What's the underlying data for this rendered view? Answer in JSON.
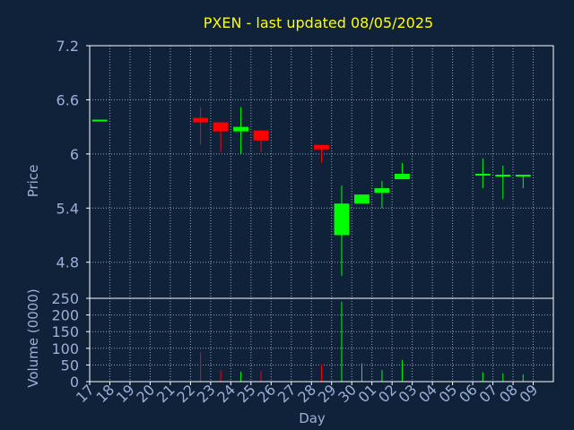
{
  "chart_data": {
    "type": "candlestick",
    "title": "PXEN - last updated 08/05/2025",
    "xlabel": "Day",
    "price_panel": {
      "ylabel": "Price",
      "ylim": [
        4.4,
        7.2
      ],
      "yticks": [
        7.2,
        6.6,
        6,
        5.4,
        4.8
      ],
      "ytick_labels": [
        "7.2",
        "6.6",
        "6",
        "5.4",
        "4.8"
      ],
      "grid": true
    },
    "volume_panel": {
      "ylabel": "Volume (0000)",
      "ylim": [
        0,
        250
      ],
      "yticks": [
        250,
        200,
        150,
        100,
        50,
        0
      ],
      "ytick_labels": [
        "250",
        "200",
        "150",
        "100",
        "50",
        "0"
      ],
      "grid": true
    },
    "x_tick_labels": [
      "17",
      "18",
      "19",
      "20",
      "21",
      "22",
      "23",
      "24",
      "25",
      "26",
      "27",
      "28",
      "29",
      "30",
      "01",
      "02",
      "03",
      "04",
      "05",
      "06",
      "07",
      "08",
      "09"
    ],
    "candles": [
      {
        "day": "17",
        "open": 6.38,
        "high": 6.38,
        "low": 6.38,
        "close": 6.38,
        "volume": 0
      },
      {
        "day": "22",
        "open": 6.4,
        "high": 6.52,
        "low": 6.1,
        "close": 6.35,
        "volume": 88
      },
      {
        "day": "23",
        "open": 6.35,
        "high": 6.35,
        "low": 6.02,
        "close": 6.25,
        "volume": 35
      },
      {
        "day": "24",
        "open": 6.25,
        "high": 6.52,
        "low": 6.0,
        "close": 6.3,
        "volume": 30
      },
      {
        "day": "25",
        "open": 6.26,
        "high": 6.26,
        "low": 6.02,
        "close": 6.15,
        "volume": 32
      },
      {
        "day": "28",
        "open": 6.1,
        "high": 6.1,
        "low": 5.9,
        "close": 6.05,
        "volume": 52
      },
      {
        "day": "29",
        "open": 5.1,
        "high": 5.65,
        "low": 4.65,
        "close": 5.45,
        "volume": 240
      },
      {
        "day": "30",
        "open": 5.45,
        "high": 5.55,
        "low": 5.45,
        "close": 5.55,
        "volume": 55
      },
      {
        "day": "01",
        "open": 5.57,
        "high": 5.7,
        "low": 5.4,
        "close": 5.62,
        "volume": 35
      },
      {
        "day": "02",
        "open": 5.72,
        "high": 5.9,
        "low": 5.72,
        "close": 5.78,
        "volume": 65
      },
      {
        "day": "06",
        "open": 5.78,
        "high": 5.95,
        "low": 5.62,
        "close": 5.78,
        "volume": 28
      },
      {
        "day": "07",
        "open": 5.77,
        "high": 5.87,
        "low": 5.5,
        "close": 5.77,
        "volume": 25
      },
      {
        "day": "08",
        "open": 5.77,
        "high": 5.77,
        "low": 5.62,
        "close": 5.77,
        "volume": 22
      }
    ],
    "colors": {
      "background": "#0f223a",
      "up": "#00ff00",
      "down": "#ff0000",
      "title": "#ffff00",
      "axis_text": "#9ab0d8",
      "frame": "#ffffff",
      "grid": "#b8c4d8"
    }
  }
}
